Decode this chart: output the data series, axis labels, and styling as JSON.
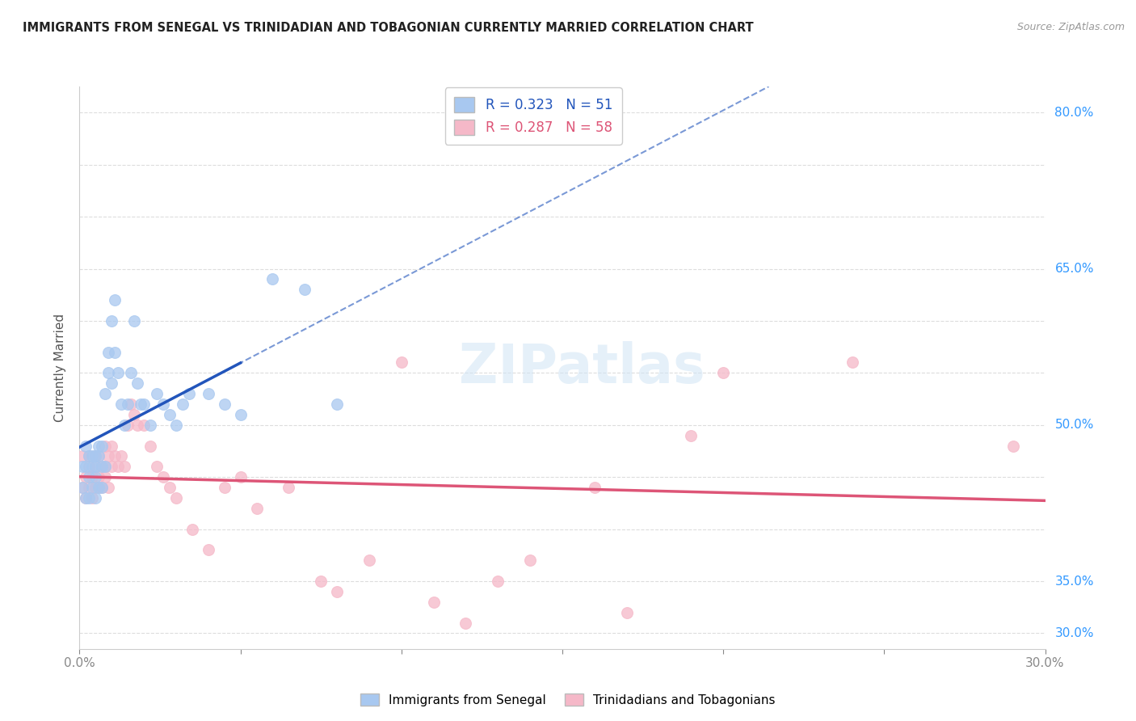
{
  "title": "IMMIGRANTS FROM SENEGAL VS TRINIDADIAN AND TOBAGONIAN CURRENTLY MARRIED CORRELATION CHART",
  "source": "Source: ZipAtlas.com",
  "ylabel": "Currently Married",
  "xlabel": "",
  "watermark": "ZIPatlas",
  "series1_label": "Immigrants from Senegal",
  "series2_label": "Trinidadians and Tobagonians",
  "series1_color": "#a8c8f0",
  "series2_color": "#f5b8c8",
  "series1_line_color": "#2255bb",
  "series2_line_color": "#dd5577",
  "series1_R": 0.323,
  "series1_N": 51,
  "series2_R": 0.287,
  "series2_N": 58,
  "xmin": 0.0,
  "xmax": 0.3,
  "ymin": 0.285,
  "ymax": 0.825,
  "yticks": [
    0.3,
    0.35,
    0.4,
    0.45,
    0.5,
    0.55,
    0.6,
    0.65,
    0.7,
    0.75,
    0.8
  ],
  "ytick_labels_shown": [
    0.3,
    0.35,
    0.5,
    0.65,
    0.8
  ],
  "ytick_labels_map": {
    "0.30": "30.0%",
    "0.35": "35.0%",
    "0.50": "50.0%",
    "0.65": "65.0%",
    "0.80": "80.0%"
  },
  "xticks": [
    0.0,
    0.05,
    0.1,
    0.15,
    0.2,
    0.25,
    0.3
  ],
  "xtick_labels": [
    "0.0%",
    "",
    "",
    "",
    "",
    "",
    "30.0%"
  ],
  "series1_x": [
    0.001,
    0.001,
    0.002,
    0.002,
    0.002,
    0.003,
    0.003,
    0.003,
    0.004,
    0.004,
    0.004,
    0.005,
    0.005,
    0.005,
    0.005,
    0.006,
    0.006,
    0.006,
    0.007,
    0.007,
    0.007,
    0.008,
    0.008,
    0.009,
    0.009,
    0.01,
    0.01,
    0.011,
    0.011,
    0.012,
    0.013,
    0.014,
    0.015,
    0.016,
    0.017,
    0.018,
    0.019,
    0.02,
    0.022,
    0.024,
    0.026,
    0.028,
    0.03,
    0.032,
    0.034,
    0.04,
    0.045,
    0.05,
    0.06,
    0.07,
    0.08
  ],
  "series1_y": [
    0.46,
    0.44,
    0.46,
    0.48,
    0.43,
    0.47,
    0.45,
    0.43,
    0.46,
    0.44,
    0.47,
    0.47,
    0.45,
    0.46,
    0.43,
    0.48,
    0.47,
    0.44,
    0.46,
    0.48,
    0.44,
    0.46,
    0.53,
    0.55,
    0.57,
    0.54,
    0.6,
    0.62,
    0.57,
    0.55,
    0.52,
    0.5,
    0.52,
    0.55,
    0.6,
    0.54,
    0.52,
    0.52,
    0.5,
    0.53,
    0.52,
    0.51,
    0.5,
    0.52,
    0.53,
    0.53,
    0.52,
    0.51,
    0.64,
    0.63,
    0.52
  ],
  "series2_x": [
    0.001,
    0.001,
    0.002,
    0.002,
    0.003,
    0.003,
    0.003,
    0.004,
    0.004,
    0.005,
    0.005,
    0.005,
    0.006,
    0.006,
    0.006,
    0.007,
    0.007,
    0.008,
    0.008,
    0.008,
    0.009,
    0.009,
    0.01,
    0.01,
    0.011,
    0.012,
    0.013,
    0.014,
    0.015,
    0.016,
    0.017,
    0.018,
    0.02,
    0.022,
    0.024,
    0.026,
    0.028,
    0.03,
    0.035,
    0.04,
    0.045,
    0.05,
    0.055,
    0.065,
    0.075,
    0.08,
    0.09,
    0.1,
    0.11,
    0.12,
    0.13,
    0.14,
    0.16,
    0.17,
    0.19,
    0.2,
    0.24,
    0.29
  ],
  "series2_y": [
    0.44,
    0.47,
    0.45,
    0.43,
    0.46,
    0.44,
    0.47,
    0.45,
    0.43,
    0.47,
    0.44,
    0.46,
    0.45,
    0.44,
    0.47,
    0.46,
    0.44,
    0.46,
    0.48,
    0.45,
    0.47,
    0.44,
    0.46,
    0.48,
    0.47,
    0.46,
    0.47,
    0.46,
    0.5,
    0.52,
    0.51,
    0.5,
    0.5,
    0.48,
    0.46,
    0.45,
    0.44,
    0.43,
    0.4,
    0.38,
    0.44,
    0.45,
    0.42,
    0.44,
    0.35,
    0.34,
    0.37,
    0.56,
    0.33,
    0.31,
    0.35,
    0.37,
    0.44,
    0.32,
    0.49,
    0.55,
    0.56,
    0.48
  ],
  "background_color": "#ffffff",
  "grid_color": "#dddddd"
}
